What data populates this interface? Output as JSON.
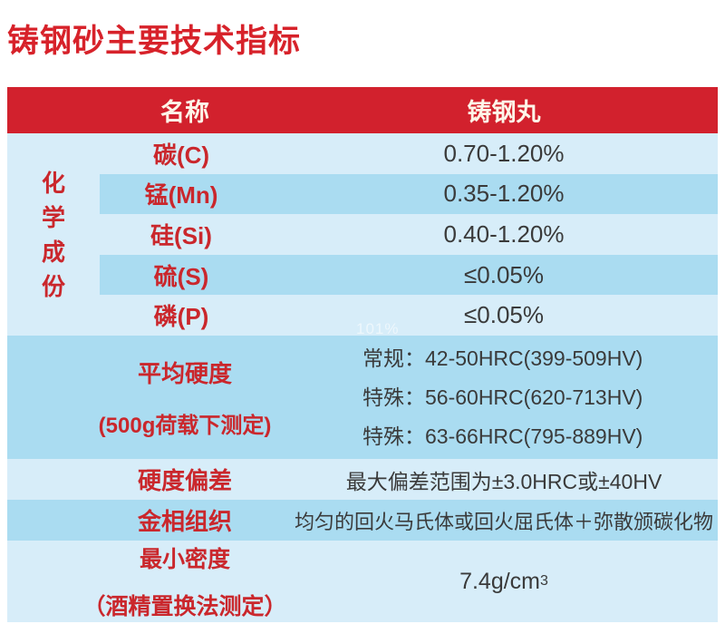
{
  "page": {
    "title": "铸钢砂主要技术指标",
    "watermark": "101%"
  },
  "colors": {
    "header_bg": "#d2212d",
    "title_red": "#d7222a",
    "label_red": "#ca272c",
    "row_light_blue": "#d7edf9",
    "row_dark_blue": "#aadcf1",
    "value_text": "#3a3a3a"
  },
  "table": {
    "header": {
      "name_col": "名称",
      "value_col": "铸钢丸"
    },
    "chemistry": {
      "group_label": "化学成份",
      "rows": [
        {
          "name": "碳(C)",
          "value": "0.70-1.20%"
        },
        {
          "name": "锰(Mn)",
          "value": "0.35-1.20%"
        },
        {
          "name": "硅(Si)",
          "value": "0.40-1.20%"
        },
        {
          "name": "硫(S)",
          "value": "≤0.05%"
        },
        {
          "name": "磷(P)",
          "value": "≤0.05%"
        }
      ]
    },
    "hardness": {
      "label_line1": "平均硬度",
      "label_line2": "(500g荷载下测定)",
      "values": [
        "常规：42-50HRC(399-509HV)",
        "特殊：56-60HRC(620-713HV)",
        "特殊：63-66HRC(795-889HV)"
      ]
    },
    "deviation": {
      "label": "硬度偏差",
      "value": "最大偏差范围为±3.0HRC或±40HV"
    },
    "metallography": {
      "label": "金相组织",
      "value": "均匀的回火马氏体或回火屈氏体＋弥散颁碳化物"
    },
    "density": {
      "label_line1": "最小密度",
      "label_line2": "（酒精置换法测定）",
      "value_base": "7.4g/cm",
      "value_sup": "3"
    }
  }
}
